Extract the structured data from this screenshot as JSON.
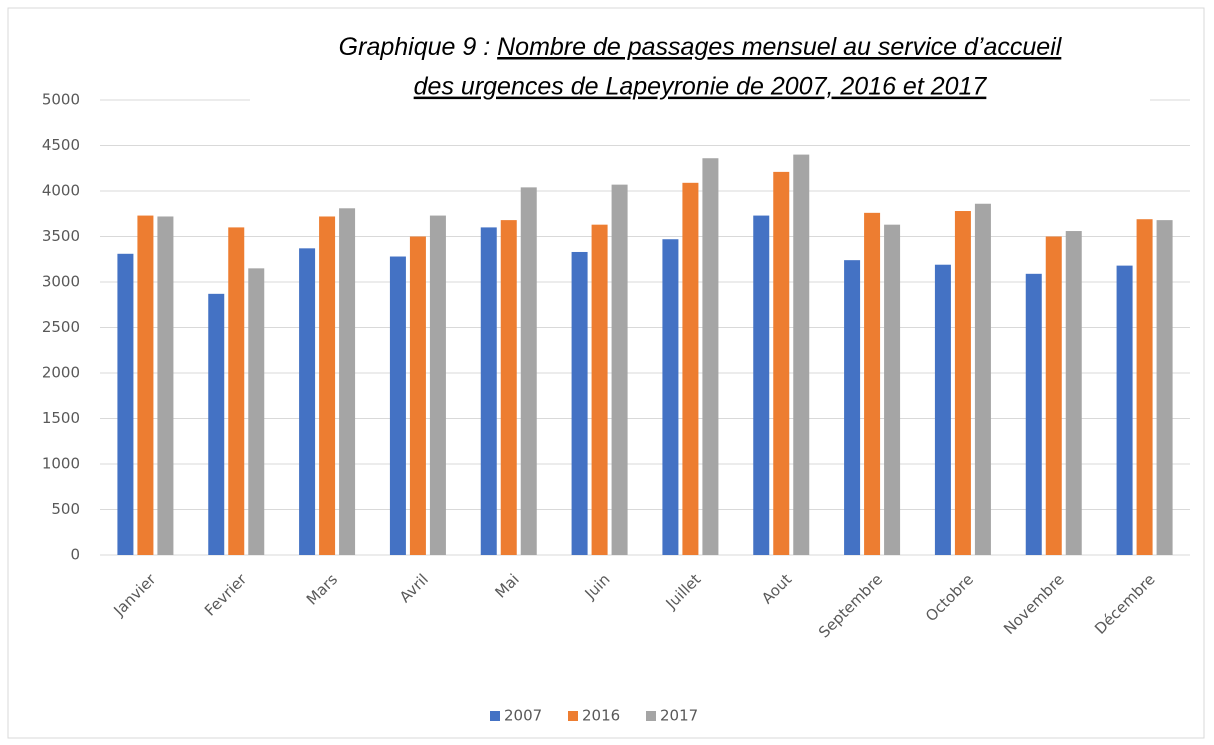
{
  "chart_data": {
    "type": "bar",
    "title": [
      "Graphique 9 :",
      "Nombre de passages mensuel au service d’accueil",
      "des urgences de Lapeyronie de 2007, 2016 et 2017"
    ],
    "categories": [
      "Janvier",
      "Fevrier",
      "Mars",
      "Avril",
      "Mai",
      "Juin",
      "Juillet",
      "Aout",
      "Septembre",
      "Octobre",
      "Novembre",
      "Décembre"
    ],
    "series": [
      {
        "name": "2007",
        "color": "#4472c4",
        "values": [
          3310,
          2870,
          3370,
          3280,
          3600,
          3330,
          3470,
          3730,
          3240,
          3190,
          3090,
          3180
        ]
      },
      {
        "name": "2016",
        "color": "#ed7d31",
        "values": [
          3730,
          3600,
          3720,
          3500,
          3680,
          3630,
          4090,
          4210,
          3760,
          3780,
          3500,
          3690
        ]
      },
      {
        "name": "2017",
        "color": "#a5a5a5",
        "values": [
          3720,
          3150,
          3810,
          3730,
          4040,
          4070,
          4360,
          4400,
          3630,
          3860,
          3560,
          3680
        ]
      }
    ],
    "ylim": [
      0,
      5000
    ],
    "yticks": [
      0,
      500,
      1000,
      1500,
      2000,
      2500,
      3000,
      3500,
      4000,
      4500,
      5000
    ],
    "grid": true,
    "legend": "bottom"
  }
}
